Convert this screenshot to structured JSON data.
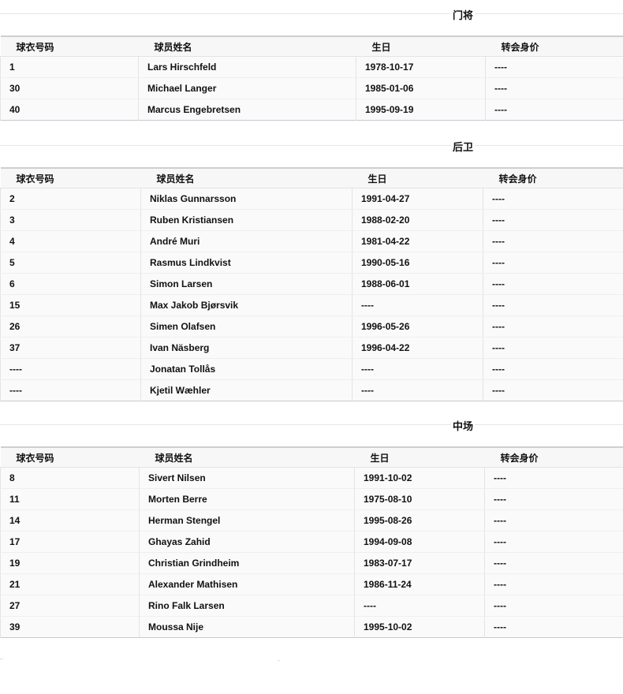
{
  "columns": [
    "球衣号码",
    "球员姓名",
    "生日",
    "转会身价"
  ],
  "sections": [
    {
      "title": "门将",
      "rows": [
        [
          "1",
          "Lars Hirschfeld",
          "1978-10-17",
          "----"
        ],
        [
          "30",
          "Michael Langer",
          "1985-01-06",
          "----"
        ],
        [
          "40",
          "Marcus Engebretsen",
          "1995-09-19",
          "----"
        ]
      ]
    },
    {
      "title": "后卫",
      "rows": [
        [
          "2",
          "Niklas Gunnarsson",
          "1991-04-27",
          "----"
        ],
        [
          "3",
          "Ruben Kristiansen",
          "1988-02-20",
          "----"
        ],
        [
          "4",
          "André Muri",
          "1981-04-22",
          "----"
        ],
        [
          "5",
          "Rasmus Lindkvist",
          "1990-05-16",
          "----"
        ],
        [
          "6",
          "Simon Larsen",
          "1988-06-01",
          "----"
        ],
        [
          "15",
          "Max Jakob Bjørsvik",
          "----",
          "----"
        ],
        [
          "26",
          "Simen Olafsen",
          "1996-05-26",
          "----"
        ],
        [
          "37",
          "Ivan Näsberg",
          "1996-04-22",
          "----"
        ],
        [
          "----",
          "Jonatan Tollås",
          "----",
          "----"
        ],
        [
          "----",
          "Kjetil Wæhler",
          "----",
          "----"
        ]
      ]
    },
    {
      "title": "中场",
      "rows": [
        [
          "8",
          "Sivert Nilsen",
          "1991-10-02",
          "----"
        ],
        [
          "11",
          "Morten Berre",
          "1975-08-10",
          "----"
        ],
        [
          "14",
          "Herman Stengel",
          "1995-08-26",
          "----"
        ],
        [
          "17",
          "Ghayas Zahid",
          "1994-09-08",
          "----"
        ],
        [
          "19",
          "Christian Grindheim",
          "1983-07-17",
          "----"
        ],
        [
          "21",
          "Alexander Mathisen",
          "1986-11-24",
          "----"
        ],
        [
          "27",
          "Rino Falk Larsen",
          "----",
          "----"
        ],
        [
          "39",
          "Moussa Nije",
          "1995-10-02",
          "----"
        ]
      ]
    }
  ]
}
